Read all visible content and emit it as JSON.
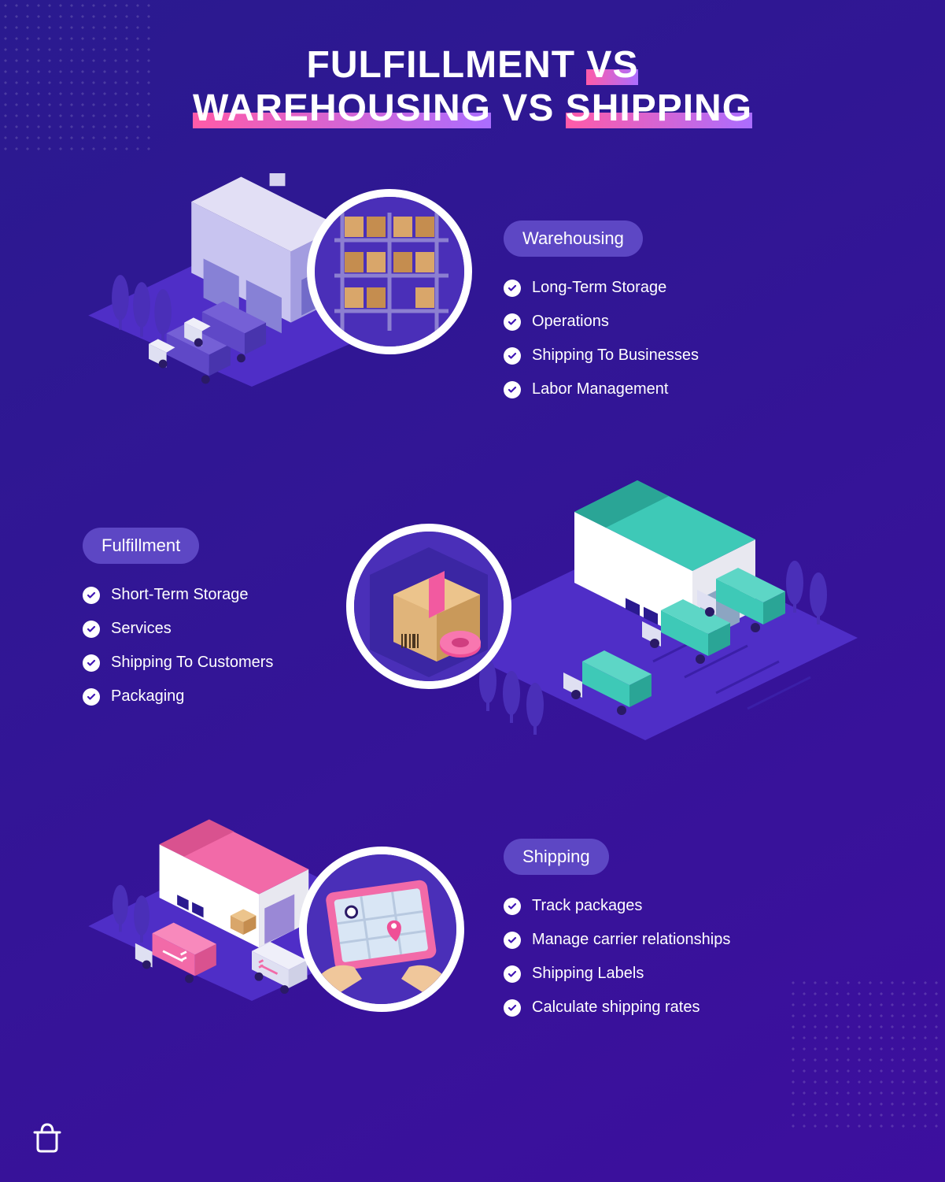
{
  "background": {
    "gradient_from": "#2a1a8f",
    "gradient_to": "#3d0f9e"
  },
  "title": {
    "line1_a": "FULFILLMENT",
    "line1_b": "VS",
    "line2_a": "WAREHOUSING",
    "line2_b": "VS",
    "line2_c": "SHIPPING",
    "highlight_gradient_from": "#ff5ba8",
    "highlight_gradient_to": "#ab6dff",
    "text_color": "#ffffff",
    "font_size": 48,
    "font_weight": 800
  },
  "sections": [
    {
      "label": "Warehousing",
      "pill_bg": "#5d47c4",
      "items": [
        "Long-Term Storage",
        "Operations",
        "Shipping To Businesses",
        "Labor Management"
      ],
      "text_side": "right",
      "illus": {
        "platform_color": "#4f2ec7",
        "building_colors": [
          "#c8c4f0",
          "#a39de0",
          "#8781d6"
        ],
        "roof_color": "#e2dff5",
        "tree_color": "#4a2fb8",
        "truck_body": "#dfe0f2",
        "truck_container": "#5f48c7",
        "circle_bg": "#4a2fb8",
        "box_colors": [
          "#d9a66a",
          "#c58d4f"
        ],
        "shelf_color": "#8c7fd1"
      }
    },
    {
      "label": "Fulfillment",
      "pill_bg": "#5d47c4",
      "items": [
        "Short-Term Storage",
        "Services",
        "Shipping To Customers",
        "Packaging"
      ],
      "text_side": "left",
      "illus": {
        "platform_color": "#4f2ec7",
        "building_colors": [
          "#ffffff",
          "#e8e8f0"
        ],
        "roof_color": "#3ec9b7",
        "roof_color_dark": "#2aa596",
        "tree_color": "#4a2fb8",
        "truck_body": "#dfe0f2",
        "truck_container": "#3ec9b7",
        "circle_bg": "#4a2fb8",
        "box_color": "#e0b47a",
        "box_tape": "#f25aa0",
        "tape_roll": "#ef4f96"
      }
    },
    {
      "label": "Shipping",
      "pill_bg": "#5d47c4",
      "items": [
        "Track packages",
        "Manage carrier relationships",
        "Shipping Labels",
        "Calculate shipping rates"
      ],
      "text_side": "right",
      "illus": {
        "platform_color": "#4f2ec7",
        "building_colors": [
          "#ffffff",
          "#e8e8f0"
        ],
        "roof_color": "#f26aa8",
        "roof_color_dark": "#d9528f",
        "tree_color": "#4a2fb8",
        "truck_body": "#dfe0f2",
        "truck_container": "#f26aa8",
        "circle_bg": "#4a2fb8",
        "tablet_frame": "#f26aa8",
        "tablet_screen": "#d9e6f5",
        "map_lines": "#b8c9e0",
        "pin_color": "#ef4f96",
        "hand_color": "#f0c79b"
      }
    }
  ],
  "check_icon_color": "#3f15b5",
  "logo_color": "#ffffff"
}
